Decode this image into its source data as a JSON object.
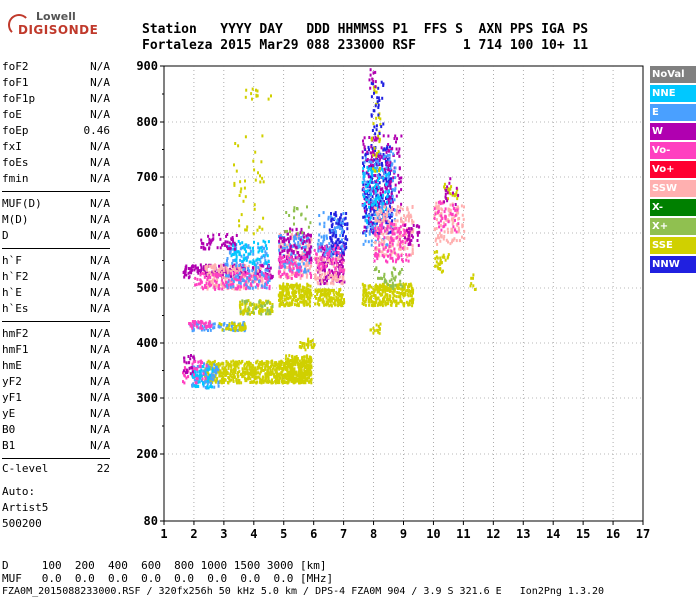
{
  "logo": {
    "line1": "Lowell",
    "line2": "DIGISONDE"
  },
  "header": {
    "line1": "Station   YYYY DAY   DDD HHMMSS P1  FFS S  AXN PPS IGA PS",
    "line2": "Fortaleza 2015 Mar29 088 233000 RSF      1 714 100 10+ 11"
  },
  "params": {
    "group1": [
      {
        "name": "foF2",
        "value": "N/A"
      },
      {
        "name": "foF1",
        "value": "N/A"
      },
      {
        "name": "foF1p",
        "value": "N/A"
      },
      {
        "name": "foE",
        "value": "N/A"
      },
      {
        "name": "foEp",
        "value": "0.46"
      },
      {
        "name": "fxI",
        "value": "N/A"
      },
      {
        "name": "foEs",
        "value": "N/A"
      },
      {
        "name": "fmin",
        "value": "N/A"
      }
    ],
    "group2": [
      {
        "name": "MUF(D)",
        "value": "N/A"
      },
      {
        "name": "M(D)",
        "value": "N/A"
      },
      {
        "name": "D",
        "value": "N/A"
      }
    ],
    "group3": [
      {
        "name": "h`F",
        "value": "N/A"
      },
      {
        "name": "h`F2",
        "value": "N/A"
      },
      {
        "name": "h`E",
        "value": "N/A"
      },
      {
        "name": "h`Es",
        "value": "N/A"
      }
    ],
    "group4": [
      {
        "name": "hmF2",
        "value": "N/A"
      },
      {
        "name": "hmF1",
        "value": "N/A"
      },
      {
        "name": "hmE",
        "value": "N/A"
      },
      {
        "name": "yF2",
        "value": "N/A"
      },
      {
        "name": "yF1",
        "value": "N/A"
      },
      {
        "name": "yE",
        "value": "N/A"
      },
      {
        "name": "B0",
        "value": "N/A"
      },
      {
        "name": "B1",
        "value": "N/A"
      }
    ],
    "clevel": {
      "name": "C-level",
      "value": "22"
    }
  },
  "auto": {
    "line1": "Auto:",
    "line2": "Artist5",
    "line3": "500200"
  },
  "bottom": {
    "line1": "D     100  200  400  600  800 1000 1500 3000 [km]",
    "line2": "MUF   0.0  0.0  0.0  0.0  0.0  0.0  0.0  0.0 [MHz]"
  },
  "footer": "FZA0M_2015088233000.RSF / 320fx256h 50 kHz 5.0 km / DPS-4 FZA0M 904 / 3.9 S 321.6 E   Ion2Png 1.3.20",
  "legend": [
    {
      "label": "NoVal",
      "color": "#808080"
    },
    {
      "label": "NNE",
      "color": "#00c8ff"
    },
    {
      "label": "E",
      "color": "#4aa0ff"
    },
    {
      "label": "W",
      "color": "#b000b0"
    },
    {
      "label": "Vo-",
      "color": "#ff40c0"
    },
    {
      "label": "Vo+",
      "color": "#ff0030"
    },
    {
      "label": "SSW",
      "color": "#ffb0b0"
    },
    {
      "label": "X-",
      "color": "#008000"
    },
    {
      "label": "X+",
      "color": "#90c050"
    },
    {
      "label": "SSE",
      "color": "#d0d000"
    },
    {
      "label": "NNW",
      "color": "#2020e0"
    }
  ],
  "chart_data": {
    "type": "scatter",
    "title": "",
    "xlabel": "",
    "ylabel": "",
    "xlim": [
      1,
      17
    ],
    "ylim": [
      80,
      900
    ],
    "xticks": [
      1,
      2,
      3,
      4,
      5,
      6,
      7,
      8,
      9,
      10,
      11,
      12,
      13,
      14,
      15,
      16,
      17
    ],
    "yticks": [
      80,
      200,
      300,
      400,
      500,
      600,
      700,
      800,
      900
    ],
    "grid": true,
    "clusters": [
      {
        "color": "SSE",
        "f": [
          2.3,
          5.9
        ],
        "h": [
          330,
          370
        ],
        "n": 700
      },
      {
        "color": "SSE",
        "f": [
          5.0,
          5.9
        ],
        "h": [
          330,
          380
        ],
        "n": 200
      },
      {
        "color": "E",
        "f": [
          1.9,
          2.8
        ],
        "h": [
          320,
          365
        ],
        "n": 90
      },
      {
        "color": "NNE",
        "f": [
          1.9,
          2.6
        ],
        "h": [
          320,
          360
        ],
        "n": 50
      },
      {
        "color": "Vo-",
        "f": [
          1.6,
          2.4
        ],
        "h": [
          330,
          370
        ],
        "n": 40
      },
      {
        "color": "W",
        "f": [
          1.6,
          2.0
        ],
        "h": [
          345,
          380
        ],
        "n": 20
      },
      {
        "color": "E",
        "f": [
          1.8,
          3.7
        ],
        "h": [
          425,
          440
        ],
        "n": 70
      },
      {
        "color": "Vo-",
        "f": [
          1.8,
          2.6
        ],
        "h": [
          428,
          442
        ],
        "n": 40
      },
      {
        "color": "SSE",
        "f": [
          2.8,
          3.7
        ],
        "h": [
          425,
          440
        ],
        "n": 40
      },
      {
        "color": "W",
        "f": [
          1.6,
          4.6
        ],
        "h": [
          520,
          545
        ],
        "n": 200
      },
      {
        "color": "SSW",
        "f": [
          2.3,
          4.3
        ],
        "h": [
          500,
          545
        ],
        "n": 160
      },
      {
        "color": "Vo-",
        "f": [
          2.0,
          4.5
        ],
        "h": [
          500,
          530
        ],
        "n": 130
      },
      {
        "color": "E",
        "f": [
          3.0,
          4.5
        ],
        "h": [
          500,
          580
        ],
        "n": 120
      },
      {
        "color": "NNE",
        "f": [
          3.2,
          4.5
        ],
        "h": [
          545,
          590
        ],
        "n": 70
      },
      {
        "color": "SSE",
        "f": [
          3.5,
          4.6
        ],
        "h": [
          455,
          480
        ],
        "n": 90
      },
      {
        "color": "X+",
        "f": [
          3.5,
          4.6
        ],
        "h": [
          455,
          480
        ],
        "n": 30
      },
      {
        "color": "W",
        "f": [
          2.2,
          3.4
        ],
        "h": [
          570,
          600
        ],
        "n": 50
      },
      {
        "color": "SSE",
        "f": [
          3.3,
          4.3
        ],
        "h": [
          600,
          780
        ],
        "n": 40
      },
      {
        "color": "SSE",
        "f": [
          3.5,
          4.6
        ],
        "h": [
          840,
          870
        ],
        "n": 12
      },
      {
        "color": "SSE",
        "f": [
          4.8,
          5.9
        ],
        "h": [
          470,
          510
        ],
        "n": 220
      },
      {
        "color": "SSW",
        "f": [
          4.8,
          5.9
        ],
        "h": [
          520,
          600
        ],
        "n": 160
      },
      {
        "color": "E",
        "f": [
          4.8,
          5.9
        ],
        "h": [
          530,
          600
        ],
        "n": 100
      },
      {
        "color": "W",
        "f": [
          4.8,
          5.9
        ],
        "h": [
          550,
          610
        ],
        "n": 90
      },
      {
        "color": "Vo-",
        "f": [
          4.8,
          5.9
        ],
        "h": [
          520,
          560
        ],
        "n": 60
      },
      {
        "color": "X+",
        "f": [
          5.0,
          5.9
        ],
        "h": [
          600,
          650
        ],
        "n": 20
      },
      {
        "color": "SSE",
        "f": [
          5.5,
          6.0
        ],
        "h": [
          390,
          410
        ],
        "n": 30
      },
      {
        "color": "W",
        "f": [
          6.1,
          7.0
        ],
        "h": [
          510,
          580
        ],
        "n": 130
      },
      {
        "color": "SSW",
        "f": [
          6.0,
          7.0
        ],
        "h": [
          510,
          560
        ],
        "n": 90
      },
      {
        "color": "SSE",
        "f": [
          6.0,
          7.0
        ],
        "h": [
          470,
          500
        ],
        "n": 130
      },
      {
        "color": "NNW",
        "f": [
          6.5,
          7.1
        ],
        "h": [
          560,
          640
        ],
        "n": 100
      },
      {
        "color": "E",
        "f": [
          6.1,
          7.0
        ],
        "h": [
          560,
          640
        ],
        "n": 70
      },
      {
        "color": "Vo-",
        "f": [
          6.0,
          7.0
        ],
        "h": [
          530,
          580
        ],
        "n": 50
      },
      {
        "color": "NNW",
        "f": [
          7.6,
          8.6
        ],
        "h": [
          600,
          760
        ],
        "n": 260
      },
      {
        "color": "W",
        "f": [
          7.6,
          8.9
        ],
        "h": [
          600,
          780
        ],
        "n": 180
      },
      {
        "color": "E",
        "f": [
          7.6,
          8.7
        ],
        "h": [
          580,
          750
        ],
        "n": 130
      },
      {
        "color": "NNE",
        "f": [
          7.6,
          8.5
        ],
        "h": [
          620,
          720
        ],
        "n": 80
      },
      {
        "color": "SSW",
        "f": [
          8.0,
          9.3
        ],
        "h": [
          560,
          650
        ],
        "n": 190
      },
      {
        "color": "SSE",
        "f": [
          7.6,
          9.3
        ],
        "h": [
          470,
          510
        ],
        "n": 280
      },
      {
        "color": "Vo-",
        "f": [
          8.0,
          9.2
        ],
        "h": [
          550,
          620
        ],
        "n": 110
      },
      {
        "color": "X+",
        "f": [
          8.0,
          9.0
        ],
        "h": [
          500,
          540
        ],
        "n": 40
      },
      {
        "color": "SSE",
        "f": [
          7.9,
          8.2
        ],
        "h": [
          700,
          880
        ],
        "n": 30
      },
      {
        "color": "NNW",
        "f": [
          7.9,
          8.3
        ],
        "h": [
          780,
          880
        ],
        "n": 30
      },
      {
        "color": "W",
        "f": [
          9.0,
          9.5
        ],
        "h": [
          580,
          620
        ],
        "n": 30
      },
      {
        "color": "SSE",
        "f": [
          7.8,
          8.2
        ],
        "h": [
          420,
          440
        ],
        "n": 15
      },
      {
        "color": "SSW",
        "f": [
          10.0,
          11.0
        ],
        "h": [
          580,
          660
        ],
        "n": 110
      },
      {
        "color": "Vo-",
        "f": [
          10.0,
          10.8
        ],
        "h": [
          600,
          660
        ],
        "n": 40
      },
      {
        "color": "SSE",
        "f": [
          10.0,
          10.5
        ],
        "h": [
          530,
          570
        ],
        "n": 30
      },
      {
        "color": "SSE",
        "f": [
          10.3,
          10.8
        ],
        "h": [
          660,
          690
        ],
        "n": 20
      },
      {
        "color": "W",
        "f": [
          10.3,
          10.8
        ],
        "h": [
          650,
          700
        ],
        "n": 15
      },
      {
        "color": "SSE",
        "f": [
          11.2,
          11.4
        ],
        "h": [
          500,
          530
        ],
        "n": 8
      },
      {
        "color": "W",
        "f": [
          7.8,
          8.1
        ],
        "h": [
          860,
          900
        ],
        "n": 10
      }
    ]
  }
}
